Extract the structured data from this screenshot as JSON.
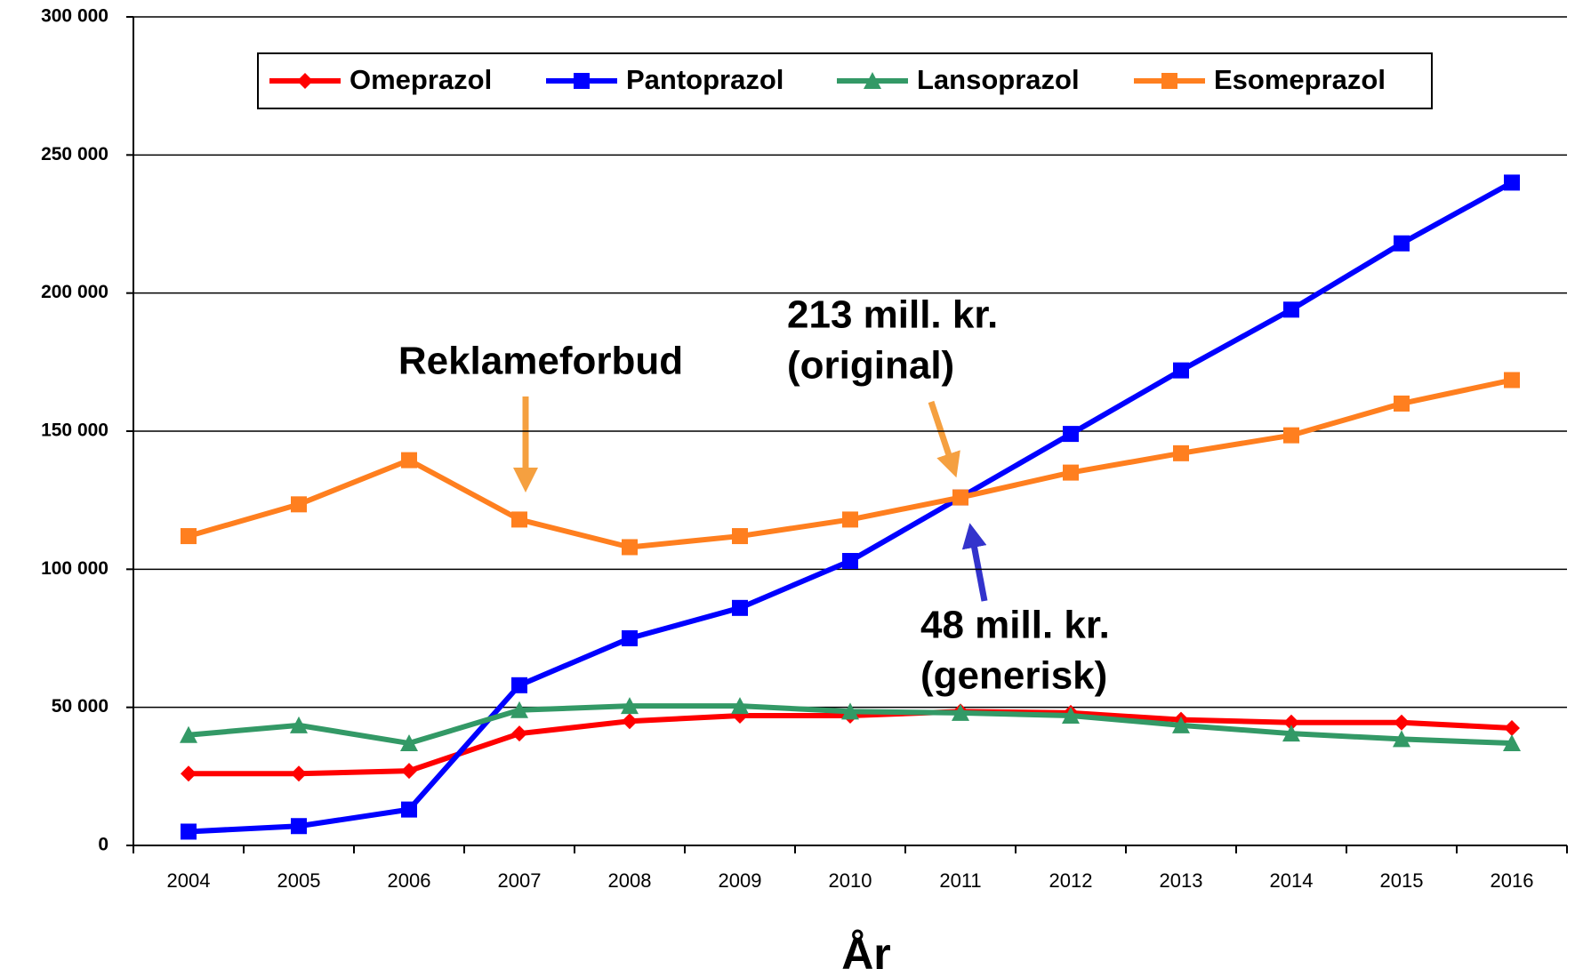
{
  "chart_data": {
    "type": "line",
    "x_label": "År",
    "categories": [
      "2004",
      "2005",
      "2006",
      "2007",
      "2008",
      "2009",
      "2010",
      "2011",
      "2012",
      "2013",
      "2014",
      "2015",
      "2016"
    ],
    "series": [
      {
        "name": "Omeprazol",
        "color": "#ff0000",
        "marker": "diamond",
        "values": [
          26000,
          26000,
          27000,
          40500,
          45000,
          47000,
          47000,
          48500,
          48000,
          45500,
          44500,
          44500,
          42500
        ]
      },
      {
        "name": "Pantoprazol",
        "color": "#0000ff",
        "marker": "square",
        "values": [
          5000,
          7000,
          13000,
          58000,
          75000,
          86000,
          103000,
          126000,
          149000,
          172000,
          194000,
          218000,
          240000
        ]
      },
      {
        "name": "Lansoprazol",
        "color": "#339966",
        "marker": "triangle",
        "values": [
          40000,
          43500,
          37000,
          49000,
          50500,
          50500,
          48500,
          48000,
          47000,
          43500,
          40500,
          38500,
          37000
        ]
      },
      {
        "name": "Esomeprazol",
        "color": "#ff7f1f",
        "marker": "square",
        "values": [
          112000,
          123500,
          139500,
          118000,
          108000,
          112000,
          118000,
          126000,
          135000,
          142000,
          148500,
          160000,
          168500
        ]
      }
    ],
    "ylim": [
      0,
      300000
    ],
    "yticks": [
      0,
      {
        "value": 50000,
        "label": "50 000"
      },
      {
        "value": 100000,
        "label": "100 000"
      },
      {
        "value": 150000,
        "label": "150 000"
      },
      {
        "value": 200000,
        "label": "200 000"
      },
      {
        "value": 250000,
        "label": "250 000"
      },
      {
        "value": 300000,
        "label": "300 000"
      }
    ],
    "grid": true,
    "legend": "top",
    "annotations": [
      {
        "lines": [
          "Reklameforbud"
        ]
      },
      {
        "lines": [
          "213 mill. kr.",
          "(original)"
        ]
      },
      {
        "lines": [
          "48 mill. kr.",
          "(generisk)"
        ]
      }
    ]
  }
}
